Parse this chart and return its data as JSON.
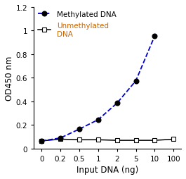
{
  "x_labels": [
    "0",
    "0.2",
    "0.5",
    "1",
    "2",
    "5",
    "10",
    "100"
  ],
  "x_positions": [
    0,
    1,
    2,
    3,
    4,
    5,
    6,
    7
  ],
  "methylated_x_pos": [
    0,
    1,
    2,
    3,
    4,
    5,
    6
  ],
  "methylated_y": [
    0.065,
    0.09,
    0.165,
    0.245,
    0.385,
    0.575,
    0.955
  ],
  "unmethylated_x_pos": [
    0,
    1,
    2,
    3,
    4,
    5,
    6,
    7
  ],
  "unmethylated_y": [
    0.065,
    0.08,
    0.075,
    0.075,
    0.07,
    0.07,
    0.07,
    0.08
  ],
  "ylim": [
    0,
    1.2
  ],
  "yticks": [
    0,
    0.2,
    0.4,
    0.6,
    0.8,
    1.0,
    1.2
  ],
  "ylabel": "OD450 nm",
  "xlabel": "Input DNA (ng)",
  "methylated_label": "Methylated DNA",
  "unmethylated_label": "Unmethylated\nDNA",
  "methylated_line_color": "#0000cc",
  "methylated_line_style": "--",
  "unmethylated_line_color": "#000000",
  "unmethylated_line_style": "-",
  "legend_fontsize": 7.5,
  "axis_label_fontsize": 8.5,
  "tick_fontsize": 7.5,
  "methylated_text_color": "#000000",
  "unmethylated_text_color": "#cc6600"
}
